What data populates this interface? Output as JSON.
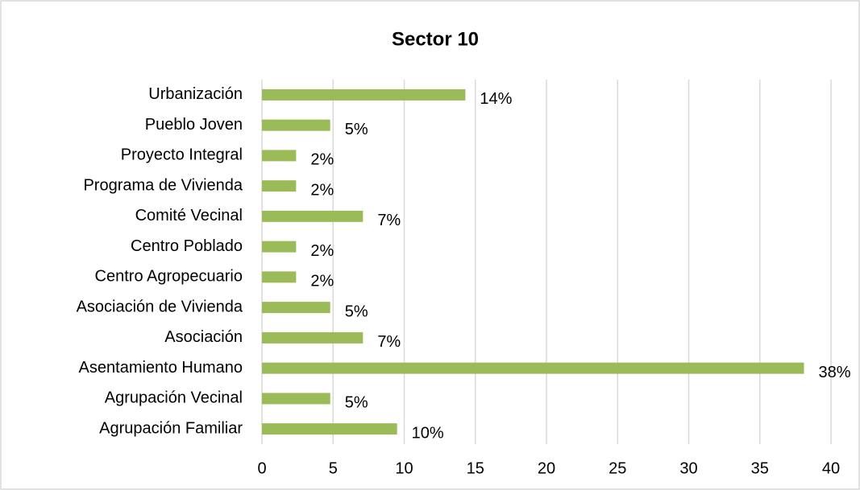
{
  "chart_data": {
    "type": "barh",
    "title": "Sector 10",
    "categories": [
      "Urbanización",
      "Pueblo Joven",
      "Proyecto Integral",
      "Programa de Vivienda",
      "Comité Vecinal",
      "Centro Poblado",
      "Centro Agropecuario",
      "Asociación de Vivienda",
      "Asociación",
      "Asentamiento Humano",
      "Agrupación Vecinal",
      "Agrupación Familiar"
    ],
    "values": [
      14.3,
      4.8,
      2.4,
      2.4,
      7.1,
      2.4,
      2.4,
      4.8,
      7.1,
      38.1,
      4.8,
      9.5
    ],
    "value_labels": [
      "14%",
      "5%",
      "2%",
      "2%",
      "7%",
      "2%",
      "2%",
      "5%",
      "7%",
      "38%",
      "5%",
      "10%"
    ],
    "color": "#9bbb59",
    "xlim": [
      0,
      40
    ],
    "xticks": [
      0,
      5,
      10,
      15,
      20,
      25,
      30,
      35,
      40
    ],
    "grid": true
  }
}
